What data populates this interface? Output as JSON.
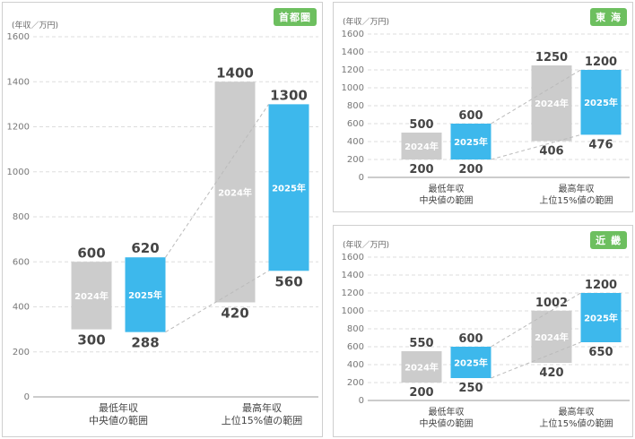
{
  "unit_label": "(年収／万円)",
  "chart_data": [
    {
      "type": "bar",
      "region": "首都圏",
      "categories": [
        "最低年収\n中央値の範囲",
        "最高年収\n上位15%値の範囲"
      ],
      "series": [
        {
          "name": "2024年",
          "ranges": [
            [
              300,
              600
            ],
            [
              420,
              1400
            ]
          ]
        },
        {
          "name": "2025年",
          "ranges": [
            [
              288,
              620
            ],
            [
              560,
              1300
            ]
          ]
        }
      ],
      "ylim": [
        0,
        1600
      ],
      "yticks": [
        0,
        200,
        400,
        600,
        800,
        1000,
        1200,
        1400,
        1600
      ],
      "grid": true,
      "colors": {
        "2024年": "#cccccc",
        "2025年": "#3db8ec"
      }
    },
    {
      "type": "bar",
      "region": "東 海",
      "categories": [
        "最低年収\n中央値の範囲",
        "最高年収\n上位15%値の範囲"
      ],
      "series": [
        {
          "name": "2024年",
          "ranges": [
            [
              200,
              500
            ],
            [
              406,
              1250
            ]
          ]
        },
        {
          "name": "2025年",
          "ranges": [
            [
              200,
              600
            ],
            [
              476,
              1200
            ]
          ]
        }
      ],
      "ylim": [
        0,
        1600
      ],
      "yticks": [
        0,
        200,
        400,
        600,
        800,
        1000,
        1200,
        1400,
        1600
      ],
      "grid": true,
      "colors": {
        "2024年": "#cccccc",
        "2025年": "#3db8ec"
      }
    },
    {
      "type": "bar",
      "region": "近 畿",
      "categories": [
        "最低年収\n中央値の範囲",
        "最高年収\n上位15%値の範囲"
      ],
      "series": [
        {
          "name": "2024年",
          "ranges": [
            [
              200,
              550
            ],
            [
              420,
              1002
            ]
          ]
        },
        {
          "name": "2025年",
          "ranges": [
            [
              250,
              600
            ],
            [
              650,
              1200
            ]
          ]
        }
      ],
      "ylim": [
        0,
        1600
      ],
      "yticks": [
        0,
        200,
        400,
        600,
        800,
        1000,
        1200,
        1400,
        1600
      ],
      "grid": true,
      "colors": {
        "2024年": "#cccccc",
        "2025年": "#3db8ec"
      }
    }
  ]
}
